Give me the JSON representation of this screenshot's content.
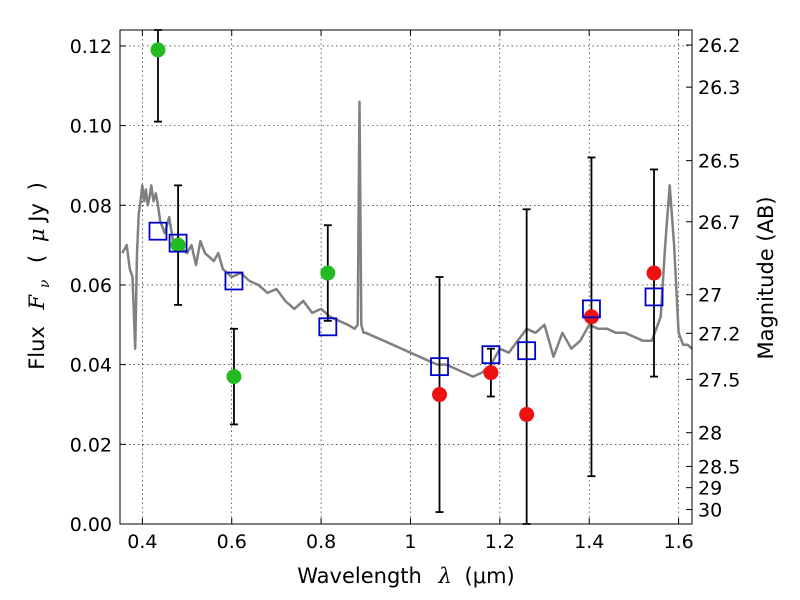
{
  "chart_data": {
    "type": "scatter",
    "xlabel": "Wavelength  λ (μm)",
    "ylabel": "Flux  F_ν  ( μJy )",
    "ylabel_parts": {
      "prefix": "Flux",
      "symbol_main": "F",
      "symbol_sub": "ν",
      "unit_open": "(",
      "unit_mu": "μ",
      "unit_rest": "Jy",
      "unit_close": ")"
    },
    "xlabel_parts": {
      "prefix": "Wavelength",
      "symbol": "λ",
      "unit": "(μm)"
    },
    "y2label": "Magnitude (AB)",
    "xlim": [
      0.35,
      1.63
    ],
    "ylim": [
      0.0,
      0.124
    ],
    "grid": true,
    "x_ticks": [
      {
        "value": 0.4,
        "label": "0.4"
      },
      {
        "value": 0.6,
        "label": "0.6"
      },
      {
        "value": 0.8,
        "label": "0.8"
      },
      {
        "value": 1.0,
        "label": "1"
      },
      {
        "value": 1.2,
        "label": "1.2"
      },
      {
        "value": 1.4,
        "label": "1.4"
      },
      {
        "value": 1.6,
        "label": "1.6"
      }
    ],
    "y_ticks": [
      {
        "value": 0.0,
        "label": "0.00"
      },
      {
        "value": 0.02,
        "label": "0.02"
      },
      {
        "value": 0.04,
        "label": "0.04"
      },
      {
        "value": 0.06,
        "label": "0.06"
      },
      {
        "value": 0.08,
        "label": "0.08"
      },
      {
        "value": 0.1,
        "label": "0.10"
      },
      {
        "value": 0.12,
        "label": "0.12"
      }
    ],
    "y2_ticks": [
      {
        "value": 26.2,
        "label": "26.2"
      },
      {
        "value": 26.3,
        "label": "26.3"
      },
      {
        "value": 26.5,
        "label": "26.5"
      },
      {
        "value": 26.7,
        "label": "26.7"
      },
      {
        "value": 27.0,
        "label": "27"
      },
      {
        "value": 27.2,
        "label": "27.2"
      },
      {
        "value": 27.5,
        "label": "27.5"
      },
      {
        "value": 28.0,
        "label": "28"
      },
      {
        "value": 28.5,
        "label": "28.5"
      },
      {
        "value": 29.0,
        "label": "29"
      },
      {
        "value": 30.0,
        "label": "30"
      }
    ],
    "series": [
      {
        "marker": "line",
        "color": "#808080",
        "x": [
          0.355,
          0.365,
          0.372,
          0.378,
          0.384,
          0.388,
          0.392,
          0.396,
          0.4,
          0.404,
          0.408,
          0.412,
          0.416,
          0.42,
          0.425,
          0.43,
          0.435,
          0.44,
          0.45,
          0.46,
          0.47,
          0.48,
          0.49,
          0.5,
          0.51,
          0.52,
          0.53,
          0.54,
          0.55,
          0.56,
          0.57,
          0.58,
          0.59,
          0.6,
          0.62,
          0.64,
          0.66,
          0.68,
          0.7,
          0.72,
          0.74,
          0.76,
          0.78,
          0.8,
          0.82,
          0.84,
          0.86,
          0.875,
          0.882,
          0.886,
          0.89,
          0.895,
          0.9,
          0.92,
          0.94,
          0.96,
          0.98,
          1.0,
          1.02,
          1.04,
          1.06,
          1.08,
          1.1,
          1.12,
          1.14,
          1.16,
          1.18,
          1.2,
          1.22,
          1.24,
          1.26,
          1.28,
          1.3,
          1.32,
          1.34,
          1.36,
          1.38,
          1.4,
          1.42,
          1.44,
          1.46,
          1.48,
          1.5,
          1.52,
          1.54,
          1.56,
          1.57,
          1.58,
          1.59,
          1.6,
          1.61,
          1.62,
          1.63
        ],
        "y": [
          0.068,
          0.07,
          0.064,
          0.062,
          0.044,
          0.068,
          0.078,
          0.081,
          0.085,
          0.081,
          0.084,
          0.08,
          0.082,
          0.085,
          0.081,
          0.083,
          0.08,
          0.076,
          0.073,
          0.077,
          0.07,
          0.072,
          0.069,
          0.068,
          0.07,
          0.065,
          0.071,
          0.068,
          0.067,
          0.066,
          0.068,
          0.064,
          0.063,
          0.062,
          0.063,
          0.061,
          0.06,
          0.058,
          0.059,
          0.056,
          0.054,
          0.056,
          0.053,
          0.054,
          0.052,
          0.051,
          0.05,
          0.049,
          0.05,
          0.106,
          0.05,
          0.048,
          0.048,
          0.047,
          0.046,
          0.045,
          0.044,
          0.043,
          0.042,
          0.041,
          0.04,
          0.04,
          0.039,
          0.038,
          0.037,
          0.038,
          0.04,
          0.044,
          0.043,
          0.046,
          0.049,
          0.048,
          0.05,
          0.042,
          0.048,
          0.044,
          0.046,
          0.05,
          0.049,
          0.049,
          0.048,
          0.048,
          0.047,
          0.046,
          0.046,
          0.052,
          0.07,
          0.085,
          0.07,
          0.048,
          0.045,
          0.045,
          0.044
        ]
      },
      {
        "marker": "circle",
        "color": "#22bb22",
        "points": [
          {
            "x": 0.435,
            "y": 0.119,
            "ylo": 0.101,
            "yhi": 0.124
          },
          {
            "x": 0.48,
            "y": 0.07,
            "ylo": 0.055,
            "yhi": 0.085
          },
          {
            "x": 0.605,
            "y": 0.037,
            "ylo": 0.025,
            "yhi": 0.049
          },
          {
            "x": 0.815,
            "y": 0.063,
            "ylo": 0.051,
            "yhi": 0.075
          }
        ]
      },
      {
        "marker": "circle",
        "color": "#ee1111",
        "points": [
          {
            "x": 1.065,
            "y": 0.0325,
            "ylo": 0.003,
            "yhi": 0.062
          },
          {
            "x": 1.18,
            "y": 0.038,
            "ylo": 0.032,
            "yhi": 0.044
          },
          {
            "x": 1.26,
            "y": 0.0275,
            "ylo": 0.0,
            "yhi": 0.079
          },
          {
            "x": 1.405,
            "y": 0.052,
            "ylo": 0.012,
            "yhi": 0.092
          },
          {
            "x": 1.545,
            "y": 0.063,
            "ylo": 0.037,
            "yhi": 0.089
          }
        ]
      },
      {
        "marker": "square",
        "color": "#0000cc",
        "points": [
          {
            "x": 0.435,
            "y": 0.0735
          },
          {
            "x": 0.48,
            "y": 0.0705
          },
          {
            "x": 0.605,
            "y": 0.061
          },
          {
            "x": 0.815,
            "y": 0.0495
          },
          {
            "x": 1.065,
            "y": 0.0395
          },
          {
            "x": 1.18,
            "y": 0.0425
          },
          {
            "x": 1.26,
            "y": 0.0435
          },
          {
            "x": 1.405,
            "y": 0.054
          },
          {
            "x": 1.545,
            "y": 0.057
          }
        ]
      }
    ]
  }
}
